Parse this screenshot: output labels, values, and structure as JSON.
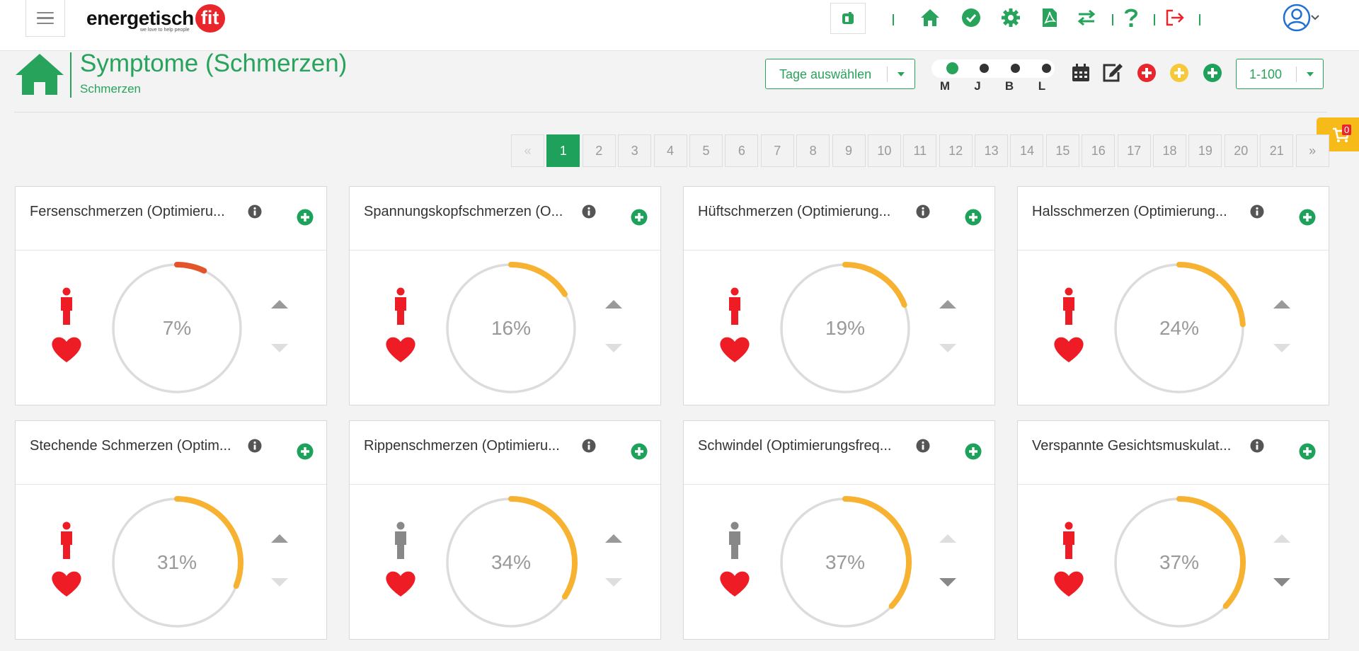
{
  "app": {
    "logo_text": "energetisch",
    "logo_badge": "fit",
    "logo_tagline": "we love to help people",
    "nav_icons": [
      "bell-icon",
      "home-icon",
      "check-circle-icon",
      "gear-icon",
      "pdf-icon",
      "transfer-icon",
      "help-icon",
      "logout-icon",
      "user-avatar-icon"
    ],
    "colors": {
      "brand_green": "#27a35b",
      "red": "#e8262c",
      "orange": "#f6b230",
      "gauge_track": "#dcdcdc"
    }
  },
  "header": {
    "title": "Symptome (Schmerzen)",
    "subtitle": "Schmerzen"
  },
  "toolbar": {
    "days_select": "Tage auswählen",
    "toggles": [
      {
        "label": "M",
        "active": true
      },
      {
        "label": "J",
        "active": false
      },
      {
        "label": "B",
        "active": false
      },
      {
        "label": "L",
        "active": false
      }
    ],
    "action_icons": [
      "calendar-icon",
      "edit-icon",
      "add-red-icon",
      "add-yellow-icon",
      "add-green-icon"
    ],
    "range_select": "1-100"
  },
  "cart": {
    "count": "0"
  },
  "pagination": {
    "prev": "«",
    "next": "»",
    "pages": [
      "1",
      "2",
      "3",
      "4",
      "5",
      "6",
      "7",
      "8",
      "9",
      "10",
      "11",
      "12",
      "13",
      "14",
      "15",
      "16",
      "17",
      "18",
      "19",
      "20",
      "21"
    ],
    "active": "1"
  },
  "cards": [
    {
      "title": "Fersenschmerzen (Optimieru...",
      "percent_label": "7%",
      "value": 7,
      "arc_color": "#e4542b",
      "person": "red",
      "up_active": true,
      "down_active": false
    },
    {
      "title": "Spannungskopfschmerzen (O...",
      "percent_label": "16%",
      "value": 16,
      "arc_color": "#f6b230",
      "person": "red",
      "up_active": true,
      "down_active": false
    },
    {
      "title": "Hüftschmerzen (Optimierung...",
      "percent_label": "19%",
      "value": 19,
      "arc_color": "#f6b230",
      "person": "red",
      "up_active": true,
      "down_active": false
    },
    {
      "title": "Halsschmerzen (Optimierung...",
      "percent_label": "24%",
      "value": 24,
      "arc_color": "#f6b230",
      "person": "red",
      "up_active": true,
      "down_active": false
    },
    {
      "title": "Stechende Schmerzen (Optim...",
      "percent_label": "31%",
      "value": 31,
      "arc_color": "#f6b230",
      "person": "red",
      "up_active": true,
      "down_active": false
    },
    {
      "title": "Rippenschmerzen (Optimieru...",
      "percent_label": "34%",
      "value": 34,
      "arc_color": "#f6b230",
      "person": "gray",
      "up_active": true,
      "down_active": false
    },
    {
      "title": "Schwindel (Optimierungsfreq...",
      "percent_label": "37%",
      "value": 37,
      "arc_color": "#f6b230",
      "person": "gray",
      "up_active": false,
      "down_active": true
    },
    {
      "title": "Verspannte Gesichtsmuskulat...",
      "percent_label": "37%",
      "value": 37,
      "arc_color": "#f6b230",
      "person": "red",
      "up_active": false,
      "down_active": true
    }
  ]
}
